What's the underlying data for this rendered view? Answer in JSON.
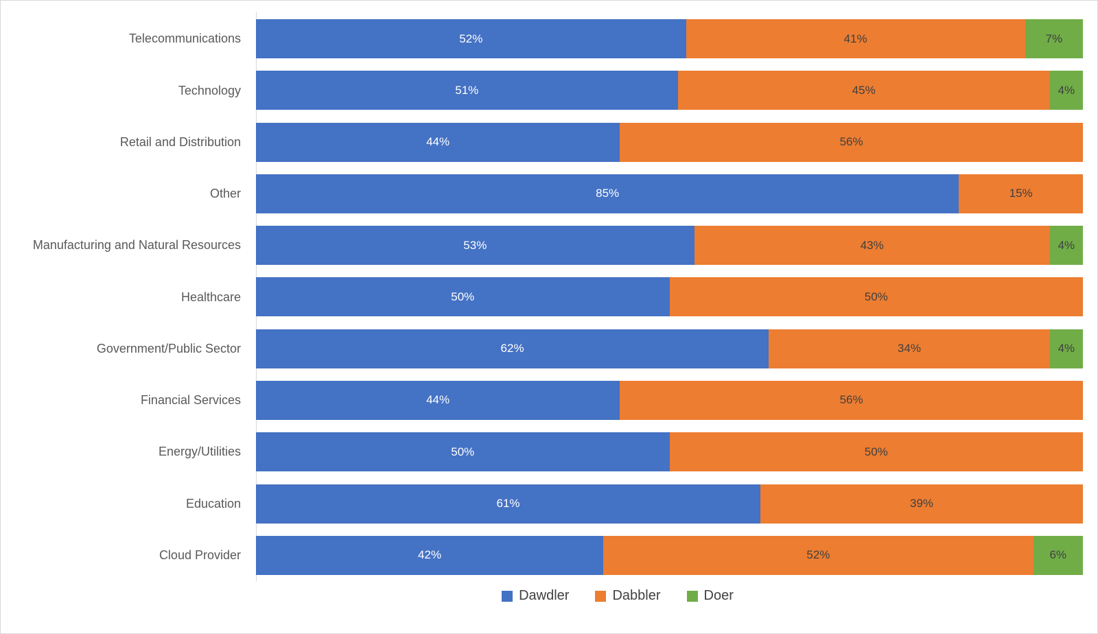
{
  "chart_data": {
    "type": "bar",
    "orientation": "horizontal",
    "stacked": true,
    "unit": "%",
    "title": "",
    "xlabel": "",
    "ylabel": "",
    "xlim": [
      0,
      100
    ],
    "grid": false,
    "legend_position": "bottom",
    "axis_line_color": "#D9D9D9",
    "category_label_color": "#595959",
    "categories": [
      "Telecommunications",
      "Technology",
      "Retail and Distribution",
      "Other",
      "Manufacturing and Natural Resources",
      "Healthcare",
      "Government/Public Sector",
      "Financial Services",
      "Energy/Utilities",
      "Education",
      "Cloud Provider"
    ],
    "series": [
      {
        "name": "Dawdler",
        "color": "#4472C4",
        "label_color": "#FFFFFF",
        "values": [
          52,
          51,
          44,
          85,
          53,
          50,
          62,
          44,
          50,
          61,
          42
        ]
      },
      {
        "name": "Dabbler",
        "color": "#ED7D31",
        "label_color": "#404040",
        "values": [
          41,
          45,
          56,
          15,
          43,
          50,
          34,
          56,
          50,
          39,
          52
        ]
      },
      {
        "name": "Doer",
        "color": "#70AD47",
        "label_color": "#404040",
        "values": [
          7,
          4,
          0,
          0,
          4,
          0,
          4,
          0,
          0,
          0,
          6
        ]
      }
    ]
  },
  "legend": {
    "items": [
      {
        "label": "Dawdler",
        "color": "#4472C4"
      },
      {
        "label": "Dabbler",
        "color": "#ED7D31"
      },
      {
        "label": "Doer",
        "color": "#70AD47"
      }
    ]
  }
}
